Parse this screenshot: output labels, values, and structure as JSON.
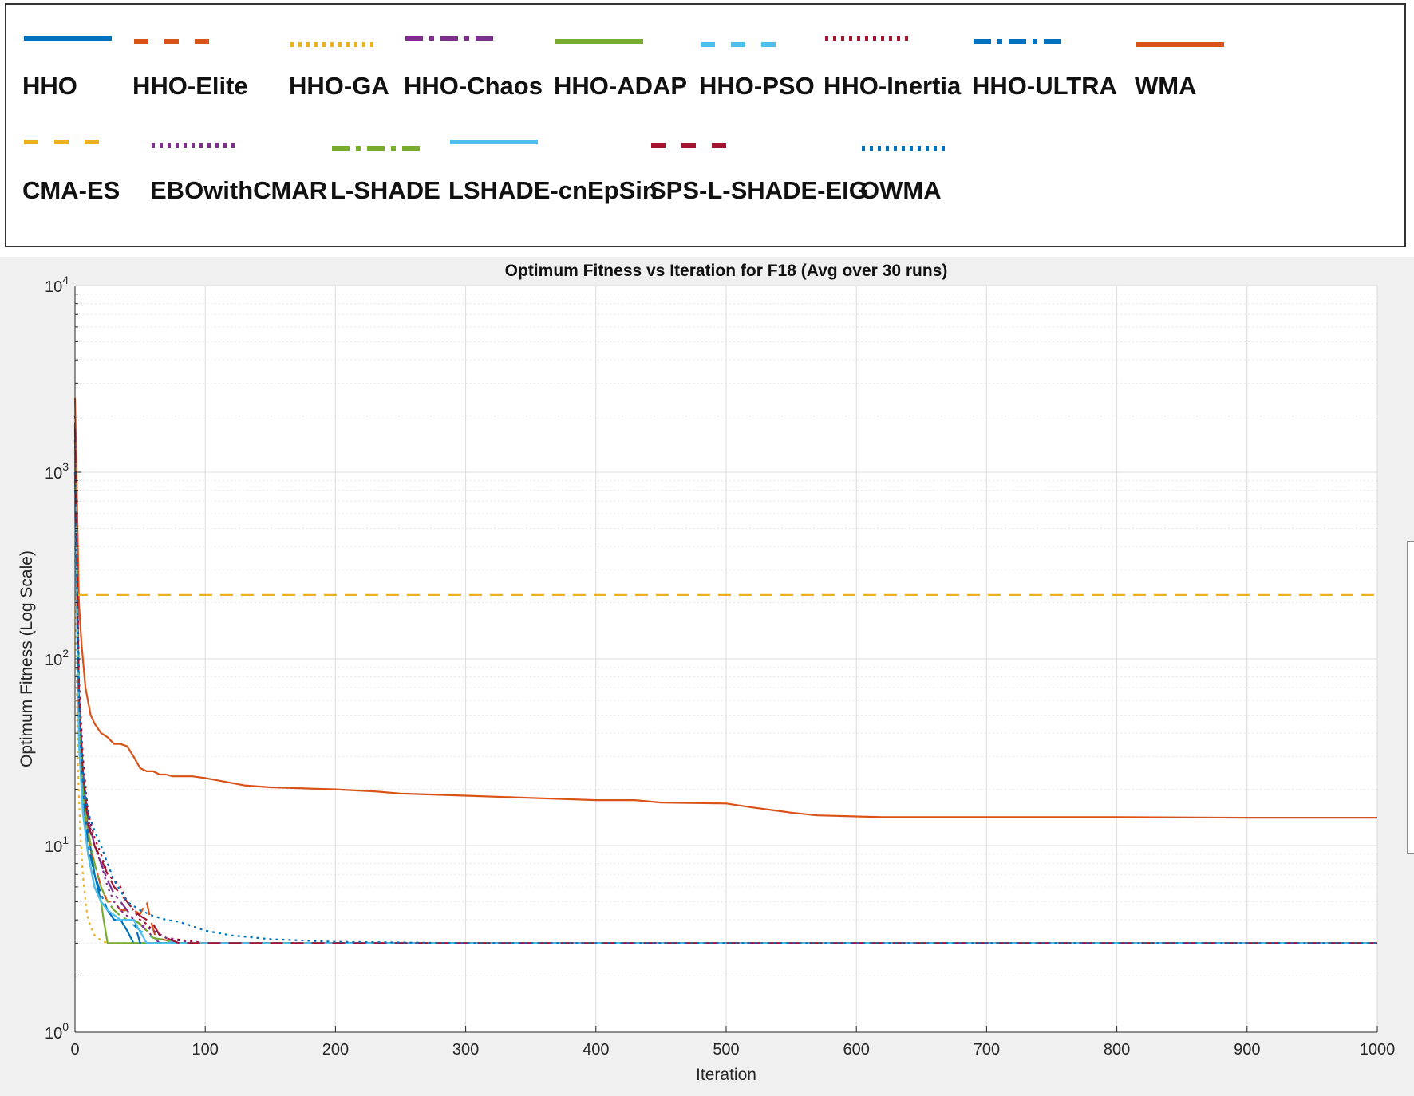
{
  "legend": {
    "entries": [
      {
        "label": "HHO",
        "color": "#0072BD",
        "dash": "solid",
        "row": 0
      },
      {
        "label": "HHO-Elite",
        "color": "#D95319",
        "dash": "dashed",
        "row": 0
      },
      {
        "label": "HHO-GA",
        "color": "#EDB120",
        "dash": "dotted",
        "row": 0
      },
      {
        "label": "HHO-Chaos",
        "color": "#7E2F8E",
        "dash": "dashdot",
        "row": 0
      },
      {
        "label": "HHO-ADAP",
        "color": "#77AC30",
        "dash": "solid",
        "row": 0
      },
      {
        "label": "HHO-PSO",
        "color": "#4DBEEE",
        "dash": "dashed",
        "row": 0
      },
      {
        "label": "HHO-Inertia",
        "color": "#A2142F",
        "dash": "dotted",
        "row": 0
      },
      {
        "label": "HHO-ULTRA",
        "color": "#0072BD",
        "dash": "dashdot",
        "row": 0
      },
      {
        "label": "WMA",
        "color": "#D95319",
        "dash": "solid",
        "row": 0
      },
      {
        "label": "CMA-ES",
        "color": "#EDB120",
        "dash": "dashed",
        "row": 1
      },
      {
        "label": "EBOwithCMAR",
        "color": "#7E2F8E",
        "dash": "dotted",
        "row": 1
      },
      {
        "label": "L-SHADE",
        "color": "#77AC30",
        "dash": "dashdot",
        "row": 1
      },
      {
        "label": "LSHADE-cnEpSin",
        "color": "#4DBEEE",
        "dash": "solid",
        "row": 1
      },
      {
        "label": "SPS-L-SHADE-EIG",
        "color": "#A2142F",
        "dash": "dashed",
        "row": 1
      },
      {
        "label": "OWMA",
        "color": "#0072BD",
        "dash": "dotted",
        "row": 1
      }
    ]
  },
  "chart_data": {
    "type": "line",
    "title": "Optimum Fitness vs Iteration for F18 (Avg over 30 runs)",
    "xlabel": "Iteration",
    "ylabel": "Optimum Fitness (Log Scale)",
    "xlim": [
      0,
      1000
    ],
    "ylim": [
      1,
      10000
    ],
    "yscale": "log",
    "grid": true,
    "x_ticks": [
      "0",
      "100",
      "200",
      "300",
      "400",
      "500",
      "600",
      "700",
      "800",
      "900",
      "1000"
    ],
    "y_ticks": [
      {
        "base": "10",
        "exp": "0"
      },
      {
        "base": "10",
        "exp": "1"
      },
      {
        "base": "10",
        "exp": "2"
      },
      {
        "base": "10",
        "exp": "3"
      },
      {
        "base": "10",
        "exp": "4"
      }
    ],
    "series": [
      {
        "name": "HHO",
        "x": [
          0,
          3,
          6,
          10,
          15,
          20,
          25,
          30,
          35,
          40,
          45,
          60,
          80,
          1000
        ],
        "y": [
          1500,
          60,
          25,
          12,
          7,
          5,
          4.5,
          4,
          4,
          3.5,
          3,
          3,
          3,
          3
        ]
      },
      {
        "name": "HHO-Elite",
        "x": [
          0,
          3,
          6,
          10,
          15,
          20,
          25,
          30,
          35,
          40,
          45,
          50,
          55,
          58,
          62,
          80,
          1000
        ],
        "y": [
          900,
          50,
          20,
          11,
          8,
          6,
          5,
          5,
          4.5,
          4.5,
          4.5,
          4.3,
          5,
          4,
          3.2,
          3,
          3
        ]
      },
      {
        "name": "HHO-GA",
        "x": [
          0,
          2,
          4,
          6,
          8,
          10,
          15,
          20,
          25,
          1000
        ],
        "y": [
          400,
          30,
          12,
          7,
          5,
          4,
          3.3,
          3.1,
          3,
          3
        ]
      },
      {
        "name": "HHO-Chaos",
        "x": [
          0,
          3,
          6,
          10,
          15,
          20,
          25,
          30,
          35,
          40,
          45,
          50,
          55,
          65,
          1000
        ],
        "y": [
          1800,
          70,
          25,
          14,
          10,
          8,
          6.5,
          5.5,
          5,
          4.5,
          4,
          3.8,
          3.5,
          3,
          3
        ]
      },
      {
        "name": "HHO-ADAP",
        "x": [
          0,
          3,
          6,
          10,
          15,
          20,
          22,
          25,
          60,
          80,
          1000
        ],
        "y": [
          1200,
          45,
          18,
          9,
          6,
          5,
          4,
          3,
          3,
          3,
          3
        ]
      },
      {
        "name": "HHO-PSO",
        "x": [
          0,
          3,
          6,
          10,
          15,
          20,
          25,
          30,
          40,
          50,
          60,
          80,
          1000
        ],
        "y": [
          800,
          40,
          16,
          9,
          6,
          5,
          4.5,
          4,
          4,
          3.5,
          3.2,
          3,
          3
        ]
      },
      {
        "name": "HHO-Inertia",
        "x": [
          0,
          3,
          6,
          10,
          15,
          20,
          25,
          30,
          35,
          40,
          45,
          50,
          55,
          60,
          70,
          100,
          1000
        ],
        "y": [
          2000,
          80,
          30,
          15,
          11,
          9,
          7,
          6.5,
          6,
          5,
          4.5,
          4,
          3.8,
          3.5,
          3.2,
          3,
          3
        ]
      },
      {
        "name": "HHO-ULTRA",
        "x": [
          0,
          3,
          6,
          10,
          15,
          20,
          25,
          30,
          35,
          40,
          45,
          50,
          80,
          1000
        ],
        "y": [
          1000,
          50,
          20,
          10,
          7,
          5.5,
          4.5,
          4,
          4,
          4,
          4,
          3,
          3,
          3
        ]
      },
      {
        "name": "WMA",
        "x": [
          0,
          3,
          5,
          8,
          12,
          15,
          20,
          25,
          30,
          35,
          40,
          45,
          50,
          55,
          60,
          65,
          70,
          75,
          80,
          90,
          100,
          115,
          130,
          150,
          200,
          230,
          250,
          300,
          350,
          400,
          430,
          450,
          500,
          520,
          535,
          550,
          570,
          620,
          700,
          800,
          900,
          1000
        ],
        "y": [
          2500,
          200,
          120,
          70,
          50,
          45,
          40,
          38,
          35,
          35,
          34,
          30,
          26,
          25,
          25,
          24,
          24,
          23.5,
          23.5,
          23.5,
          23,
          22,
          21,
          20.5,
          20,
          19.5,
          19,
          18.5,
          18,
          17.5,
          17.5,
          17,
          16.8,
          16,
          15.5,
          15,
          14.5,
          14.2,
          14.2,
          14.2,
          14.1,
          14.1
        ]
      },
      {
        "name": "CMA-ES",
        "x": [
          0,
          1000
        ],
        "y": [
          220,
          220
        ]
      },
      {
        "name": "EBOwithCMAR",
        "x": [
          0,
          3,
          6,
          10,
          15,
          20,
          25,
          30,
          35,
          40,
          50,
          60,
          70,
          90,
          1000
        ],
        "y": [
          1500,
          60,
          25,
          14,
          10,
          8,
          6,
          5,
          4.5,
          4.2,
          3.8,
          3.5,
          3.2,
          3,
          3
        ]
      },
      {
        "name": "L-SHADE",
        "x": [
          0,
          3,
          6,
          10,
          15,
          20,
          25,
          30,
          35,
          40,
          45,
          50,
          55,
          60,
          80,
          1000
        ],
        "y": [
          1300,
          55,
          20,
          12,
          8,
          6,
          5,
          4.5,
          4.2,
          4,
          4,
          3.8,
          3.5,
          3.2,
          3,
          3
        ]
      },
      {
        "name": "LSHADE-cnEpSin",
        "x": [
          0,
          3,
          6,
          10,
          15,
          20,
          25,
          35,
          45,
          55,
          80,
          1000
        ],
        "y": [
          700,
          35,
          15,
          9,
          6,
          5,
          4.5,
          4,
          4,
          3,
          3,
          3
        ]
      },
      {
        "name": "SPS-L-SHADE-EIG",
        "x": [
          0,
          3,
          6,
          10,
          15,
          20,
          25,
          30,
          35,
          40,
          45,
          50,
          55,
          60,
          65,
          80,
          1000
        ],
        "y": [
          1700,
          65,
          25,
          13,
          10,
          8.5,
          7,
          6,
          5.5,
          5,
          4.5,
          4.2,
          4,
          3.8,
          3.3,
          3,
          3
        ]
      },
      {
        "name": "OWMA",
        "x": [
          0,
          3,
          6,
          10,
          15,
          20,
          25,
          30,
          40,
          50,
          60,
          70,
          80,
          90,
          100,
          120,
          150,
          200,
          300,
          1000
        ],
        "y": [
          1000,
          60,
          25,
          15,
          12,
          10,
          8,
          6.5,
          5,
          4.5,
          4.2,
          4,
          3.9,
          3.7,
          3.5,
          3.3,
          3.15,
          3.05,
          3,
          3
        ]
      }
    ]
  }
}
